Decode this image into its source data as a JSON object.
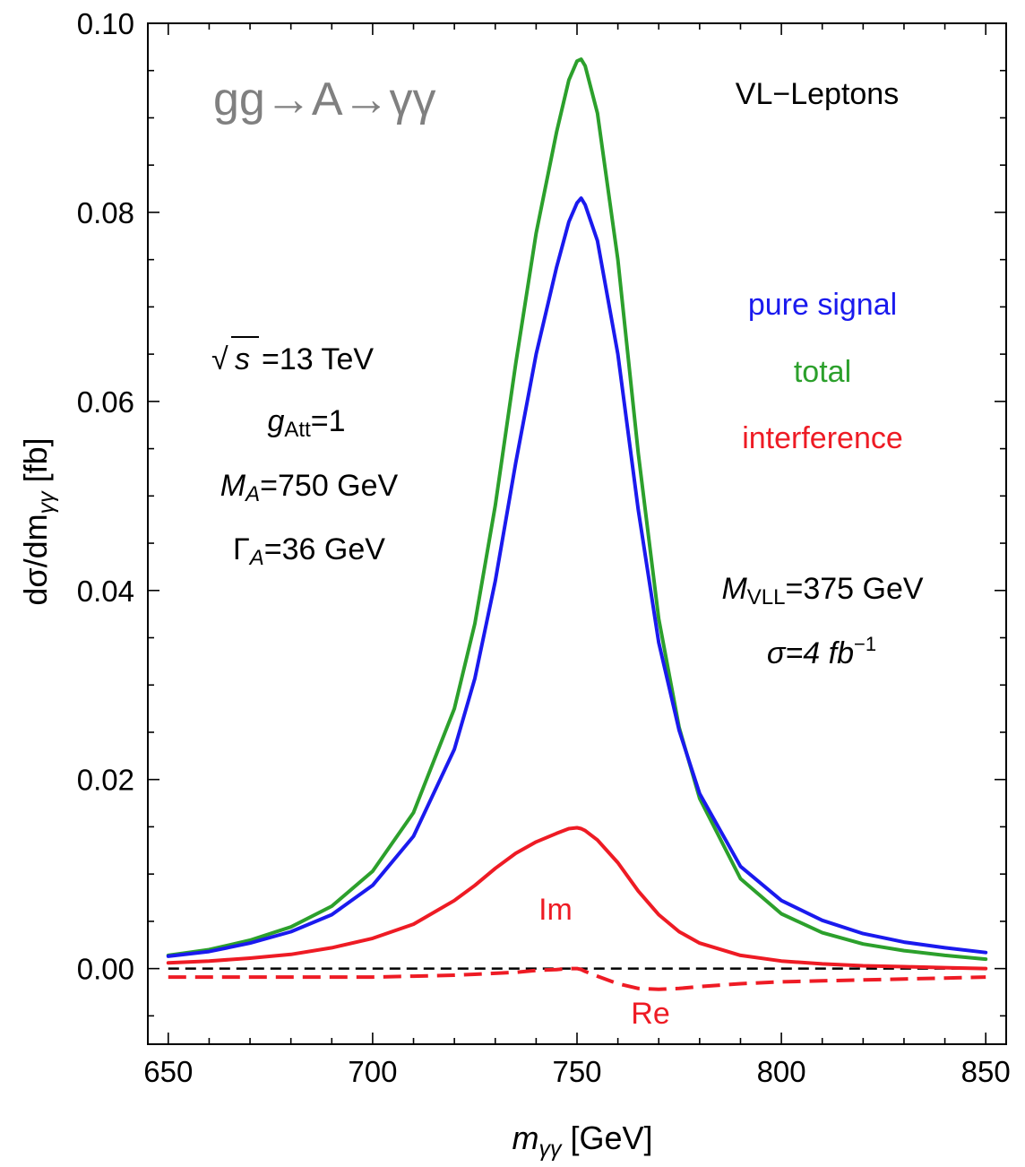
{
  "chart_data": {
    "type": "line",
    "title": "gg→A→γγ",
    "xlabel": {
      "main": "m",
      "sub": "γγ",
      "unit": " [GeV]"
    },
    "ylabel": {
      "pre": "dσ/dm",
      "sub": "γγ",
      "unit": " [fb]"
    },
    "xlim": [
      645,
      855
    ],
    "ylim": [
      -0.008,
      0.1
    ],
    "x_ticks": [
      650,
      700,
      750,
      800,
      850
    ],
    "x_tick_labels": [
      "650",
      "700",
      "750",
      "800",
      "850"
    ],
    "y_ticks": [
      0.0,
      0.02,
      0.04,
      0.06,
      0.08,
      0.1
    ],
    "y_tick_labels": [
      "0.00",
      "0.02",
      "0.04",
      "0.06",
      "0.08",
      "0.10"
    ],
    "x": [
      650,
      660,
      670,
      680,
      690,
      700,
      710,
      720,
      725,
      730,
      735,
      740,
      745,
      748,
      750,
      751,
      752,
      755,
      760,
      765,
      770,
      775,
      780,
      790,
      800,
      810,
      820,
      830,
      840,
      850
    ],
    "series": [
      {
        "name": "total",
        "color": "#2ca02c",
        "dashed": false,
        "values": [
          0.0014,
          0.002,
          0.003,
          0.0044,
          0.0066,
          0.0103,
          0.0165,
          0.0275,
          0.0365,
          0.049,
          0.064,
          0.0778,
          0.0885,
          0.094,
          0.096,
          0.0962,
          0.0955,
          0.0905,
          0.075,
          0.0545,
          0.037,
          0.0255,
          0.018,
          0.0095,
          0.0058,
          0.0038,
          0.0026,
          0.0019,
          0.0014,
          0.001
        ]
      },
      {
        "name": "pure signal",
        "color": "#1a1aee",
        "dashed": false,
        "values": [
          0.0013,
          0.0018,
          0.0027,
          0.0039,
          0.0057,
          0.0088,
          0.014,
          0.0232,
          0.0307,
          0.041,
          0.0535,
          0.065,
          0.0742,
          0.079,
          0.081,
          0.0815,
          0.0808,
          0.077,
          0.065,
          0.0485,
          0.0345,
          0.0252,
          0.0185,
          0.0108,
          0.0072,
          0.0051,
          0.0037,
          0.0028,
          0.0022,
          0.0017
        ]
      },
      {
        "name": "Im",
        "color": "#ee1b24",
        "dashed": false,
        "values": [
          0.0006,
          0.0008,
          0.0011,
          0.0015,
          0.0022,
          0.0032,
          0.0047,
          0.0072,
          0.0088,
          0.0106,
          0.0122,
          0.0134,
          0.0143,
          0.0148,
          0.0149,
          0.0148,
          0.0146,
          0.0136,
          0.0112,
          0.0082,
          0.0057,
          0.0039,
          0.0027,
          0.0014,
          0.0008,
          0.0005,
          0.0003,
          0.0002,
          0.0001,
          0.0
        ]
      },
      {
        "name": "Re",
        "color": "#ee1b24",
        "dashed": true,
        "values": [
          -0.0009,
          -0.0009,
          -0.0009,
          -0.0009,
          -0.0009,
          -0.0009,
          -0.0008,
          -0.0007,
          -0.0006,
          -0.0005,
          -0.0004,
          -0.0002,
          -0.0001,
          0.0,
          0.0,
          -0.0001,
          -0.0003,
          -0.0008,
          -0.0016,
          -0.0021,
          -0.0022,
          -0.0021,
          -0.0019,
          -0.0016,
          -0.0014,
          -0.0013,
          -0.0012,
          -0.0011,
          -0.001,
          -0.0009
        ]
      },
      {
        "name": "zero",
        "color": "#000000",
        "dashed": true,
        "values": [
          0,
          0,
          0,
          0,
          0,
          0,
          0,
          0,
          0,
          0,
          0,
          0,
          0,
          0,
          0,
          0,
          0,
          0,
          0,
          0,
          0,
          0,
          0,
          0,
          0,
          0,
          0,
          0,
          0,
          0
        ]
      }
    ]
  },
  "annotations": {
    "process": "gg→A→γγ",
    "model": "VL−Leptons",
    "legend_pure_signal": "pure signal",
    "legend_total": "total",
    "legend_interference": "interference",
    "sqrt_symbol": "√",
    "sqrt_arg": "s",
    "sqrt_value": "=13 TeV",
    "g_main": "g",
    "g_sub": "Att",
    "g_value": "=1",
    "ma_main": "M",
    "ma_sub": "A",
    "ma_value": "=750 GeV",
    "gamma_main": "Γ",
    "gamma_sub": "A",
    "gamma_value": "=36 GeV",
    "mvll_main": "M",
    "mvll_sub": "VLL",
    "mvll_value": "=375 GeV",
    "sigma_main": "σ=4 fb",
    "sigma_sup": "−1",
    "label_im": "Im",
    "label_re": "Re"
  },
  "colors": {
    "total": "#2ca02c",
    "pure_signal": "#1a1aee",
    "interference": "#ee1b24",
    "process_label": "#808080"
  }
}
